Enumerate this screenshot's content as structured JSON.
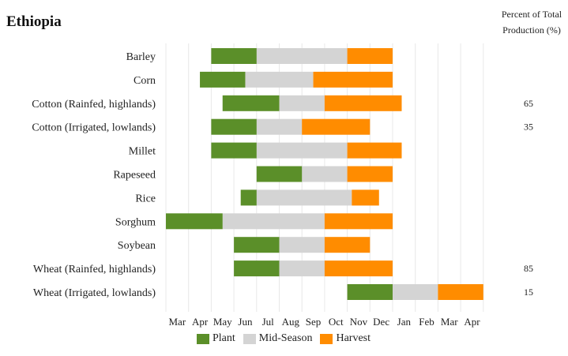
{
  "chart_data": {
    "type": "bar",
    "title": "Ethiopia",
    "percent_header": [
      "Percent of Total",
      "Production (%)"
    ],
    "months": [
      "Mar",
      "Apr",
      "May",
      "Jun",
      "Jul",
      "Aug",
      "Sep",
      "Oct",
      "Nov",
      "Dec",
      "Jan",
      "Feb",
      "Mar",
      "Apr"
    ],
    "legend": [
      {
        "label": "Plant",
        "color": "#5b8f29"
      },
      {
        "label": "Mid-Season",
        "color": "#d4d4d4"
      },
      {
        "label": "Harvest",
        "color": "#ff8c00"
      }
    ],
    "crops": [
      {
        "name": "Barley",
        "plant": [
          2,
          4
        ],
        "mid": [
          4,
          8
        ],
        "harvest": [
          8,
          10
        ],
        "percent": ""
      },
      {
        "name": "Corn",
        "plant": [
          1.5,
          3.5
        ],
        "mid": [
          3.5,
          6.5
        ],
        "harvest": [
          6.5,
          10
        ],
        "percent": ""
      },
      {
        "name": "Cotton (Rainfed, highlands)",
        "plant": [
          2.5,
          5
        ],
        "mid": [
          5,
          7
        ],
        "harvest": [
          7,
          10.4
        ],
        "percent": "65"
      },
      {
        "name": "Cotton (Irrigated, lowlands)",
        "plant": [
          2,
          4
        ],
        "mid": [
          4,
          6
        ],
        "harvest": [
          6,
          9
        ],
        "percent": "35"
      },
      {
        "name": "Millet",
        "plant": [
          2,
          4
        ],
        "mid": [
          4,
          8
        ],
        "harvest": [
          8,
          10.4
        ],
        "percent": ""
      },
      {
        "name": "Rapeseed",
        "plant": [
          4,
          6
        ],
        "mid": [
          6,
          8
        ],
        "harvest": [
          8,
          10
        ],
        "percent": ""
      },
      {
        "name": "Rice",
        "plant": [
          3.3,
          4
        ],
        "mid": [
          4,
          8.2
        ],
        "harvest": [
          8.2,
          9.4
        ],
        "percent": ""
      },
      {
        "name": "Sorghum",
        "plant": [
          0,
          2.5
        ],
        "mid": [
          2.5,
          7
        ],
        "harvest": [
          7,
          10
        ],
        "percent": ""
      },
      {
        "name": "Soybean",
        "plant": [
          3,
          5
        ],
        "mid": [
          5,
          7
        ],
        "harvest": [
          7,
          9
        ],
        "percent": ""
      },
      {
        "name": "Wheat (Rainfed, highlands)",
        "plant": [
          3,
          5
        ],
        "mid": [
          5,
          7
        ],
        "harvest": [
          7,
          10
        ],
        "percent": "85"
      },
      {
        "name": "Wheat (Irrigated, lowlands)",
        "plant": [
          8,
          10
        ],
        "mid": [
          10,
          12
        ],
        "harvest": [
          12,
          14
        ],
        "percent": "15"
      }
    ]
  }
}
